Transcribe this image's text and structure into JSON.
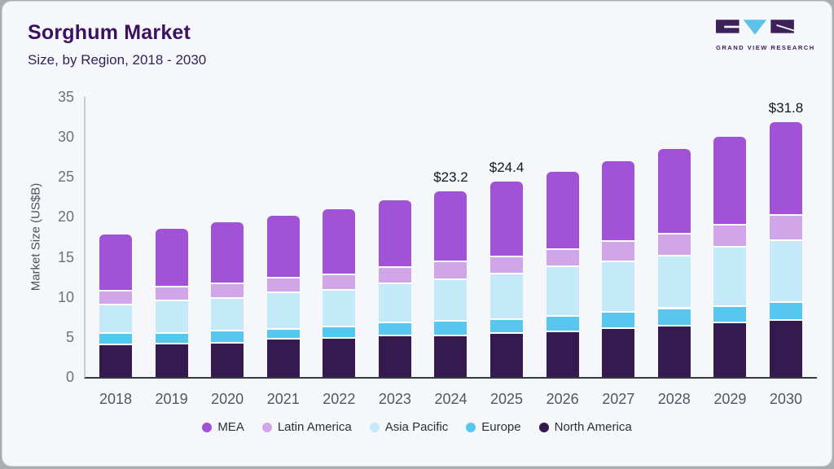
{
  "header": {
    "title": "Sorghum Market",
    "subtitle": "Size, by Region, 2018 - 2030"
  },
  "logo": {
    "text": "GRAND VIEW RESEARCH",
    "dark": "#3d2159",
    "blue": "#5ec1e8"
  },
  "colors": {
    "card_bg": "#f5f7fa",
    "frame": "#a9acb1",
    "x_axis_line": "#343842",
    "y_axis_line": "#c8ccd3",
    "y_tick_text": "#6d727a",
    "x_label_text": "#52575f",
    "value_label_text": "#14161b",
    "title_text": "#3c1160"
  },
  "chart_data": {
    "type": "bar",
    "stacked": true,
    "title": "Sorghum Market Size, by Region, 2018 - 2030",
    "xlabel": "",
    "ylabel": "Market Size (US$B)",
    "ylim": [
      0,
      35
    ],
    "yticks": [
      0,
      5,
      10,
      15,
      20,
      25,
      30,
      35
    ],
    "grid": false,
    "legend_position": "bottom",
    "categories": [
      2018,
      2019,
      2020,
      2021,
      2022,
      2023,
      2024,
      2025,
      2026,
      2027,
      2028,
      2029,
      2030
    ],
    "series": [
      {
        "name": "North America",
        "color": "#351a4f",
        "values": [
          4.0,
          4.1,
          4.2,
          4.7,
          4.8,
          5.1,
          5.1,
          5.4,
          5.6,
          6.0,
          6.3,
          6.7,
          7.0
        ]
      },
      {
        "name": "Europe",
        "color": "#58c7ef",
        "values": [
          1.4,
          1.3,
          1.5,
          1.2,
          1.4,
          1.6,
          1.8,
          1.7,
          1.9,
          2.0,
          2.2,
          2.1,
          2.3
        ]
      },
      {
        "name": "Asia Pacific",
        "color": "#c4e9f9",
        "values": [
          3.6,
          4.1,
          4.1,
          4.6,
          4.6,
          4.9,
          5.2,
          5.7,
          6.2,
          6.3,
          6.6,
          7.4,
          7.7
        ]
      },
      {
        "name": "Latin America",
        "color": "#d1a6e8",
        "values": [
          1.7,
          1.7,
          1.8,
          1.8,
          1.9,
          2.0,
          2.2,
          2.2,
          2.2,
          2.6,
          2.7,
          2.7,
          3.1
        ]
      },
      {
        "name": "MEA",
        "color": "#a152d6",
        "values": [
          7.1,
          7.3,
          7.7,
          7.8,
          8.3,
          8.5,
          8.9,
          9.4,
          9.7,
          10.1,
          10.7,
          11.1,
          11.7
        ]
      }
    ],
    "totals": [
      17.8,
      18.5,
      19.3,
      20.1,
      21.0,
      22.1,
      23.2,
      24.4,
      25.6,
      27.0,
      28.5,
      30.0,
      31.8
    ],
    "value_labels": {
      "2024": "$23.2",
      "2025": "$24.4",
      "2030": "$31.8"
    },
    "legend_order": [
      "MEA",
      "Latin America",
      "Asia Pacific",
      "Europe",
      "North America"
    ]
  }
}
